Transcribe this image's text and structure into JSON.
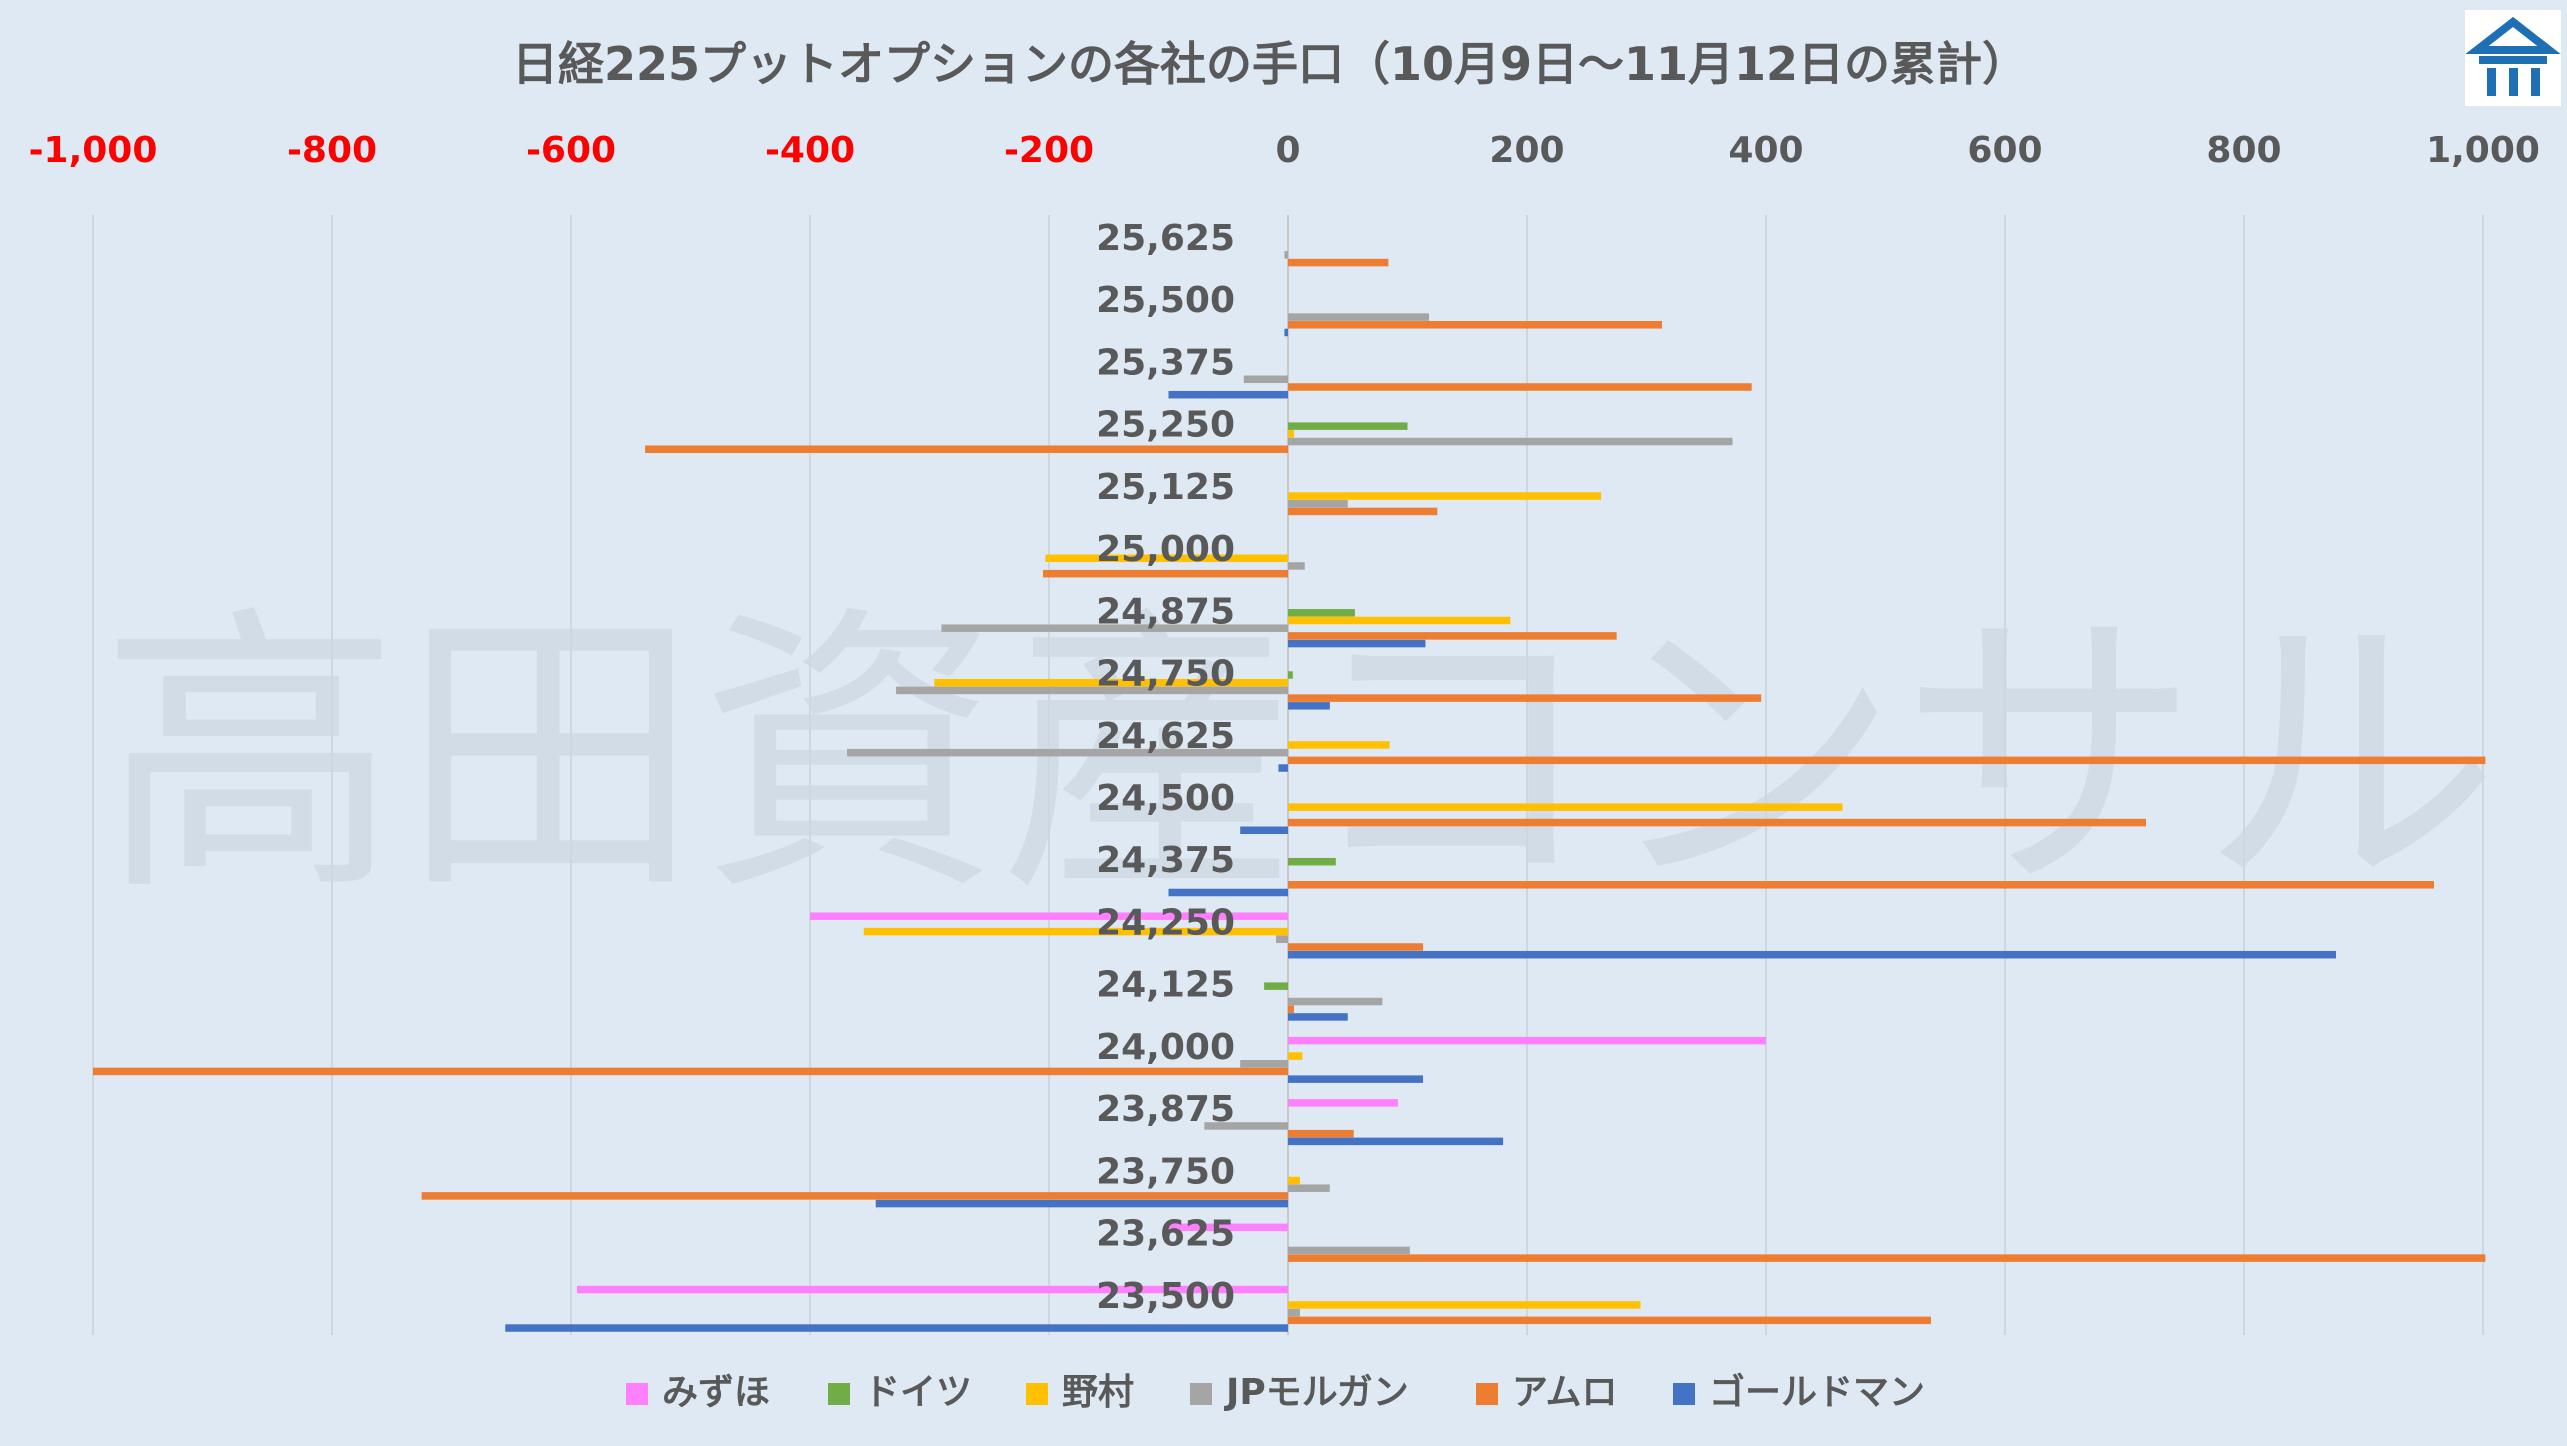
{
  "brand": {
    "watermark": "高田資産コンサル",
    "logo": "building-logo",
    "logo_color": "#1f6fb4"
  },
  "chart_data": {
    "type": "bar",
    "orientation": "horizontal",
    "title": "日経225プットオプションの各社の手口（10月9日～11月12日の累計）",
    "xlim": [
      -1000,
      1000
    ],
    "xticks": [
      {
        "label": "-1,000",
        "value": -1000
      },
      {
        "label": "-800",
        "value": -800
      },
      {
        "label": "-600",
        "value": -600
      },
      {
        "label": "-400",
        "value": -400
      },
      {
        "label": "-200",
        "value": -200
      },
      {
        "label": "0",
        "value": 0
      },
      {
        "label": "200",
        "value": 200
      },
      {
        "label": "400",
        "value": 400
      },
      {
        "label": "600",
        "value": 600
      },
      {
        "label": "800",
        "value": 800
      },
      {
        "label": "1,000",
        "value": 1000
      }
    ],
    "negative_tick_color": "#ff0000",
    "positive_tick_color": "#595959",
    "grid": "vertical",
    "legend_position": "bottom",
    "categories": [
      "25,625",
      "25,500",
      "25,375",
      "25,250",
      "25,125",
      "25,000",
      "24,875",
      "24,750",
      "24,625",
      "24,500",
      "24,375",
      "24,250",
      "24,125",
      "24,000",
      "23,875",
      "23,750",
      "23,625",
      "23,500"
    ],
    "series": [
      {
        "name": "みずほ",
        "color": "#ff80ff",
        "values": [
          0,
          0,
          0,
          0,
          0,
          0,
          0,
          0,
          0,
          0,
          0,
          -400,
          0,
          400,
          92,
          0,
          -100,
          -595
        ]
      },
      {
        "name": "ドイツ",
        "color": "#70ad47",
        "values": [
          0,
          0,
          0,
          100,
          0,
          0,
          56,
          4,
          0,
          0,
          40,
          0,
          -20,
          0,
          0,
          0,
          0,
          0
        ]
      },
      {
        "name": "野村",
        "color": "#ffc000",
        "values": [
          0,
          0,
          0,
          5,
          262,
          -203,
          186,
          -296,
          85,
          464,
          0,
          -355,
          0,
          12,
          0,
          10,
          0,
          295
        ]
      },
      {
        "name": "JPモルガン",
        "color": "#a5a5a5",
        "values": [
          -3,
          118,
          -37,
          372,
          50,
          14,
          -290,
          -328,
          -369,
          0,
          0,
          -10,
          79,
          -40,
          -70,
          35,
          102,
          10
        ]
      },
      {
        "name": "アムロ",
        "color": "#ed7d31",
        "values": [
          84,
          313,
          388,
          -538,
          125,
          -205,
          275,
          396,
          1002,
          718,
          959,
          113,
          5,
          -1000,
          55,
          -725,
          1002,
          538
        ]
      },
      {
        "name": "ゴールドマン",
        "color": "#4472c4",
        "values": [
          0,
          -3,
          -100,
          0,
          0,
          0,
          115,
          35,
          -8,
          -40,
          -100,
          877,
          50,
          113,
          180,
          -345,
          0,
          -655
        ]
      }
    ]
  }
}
